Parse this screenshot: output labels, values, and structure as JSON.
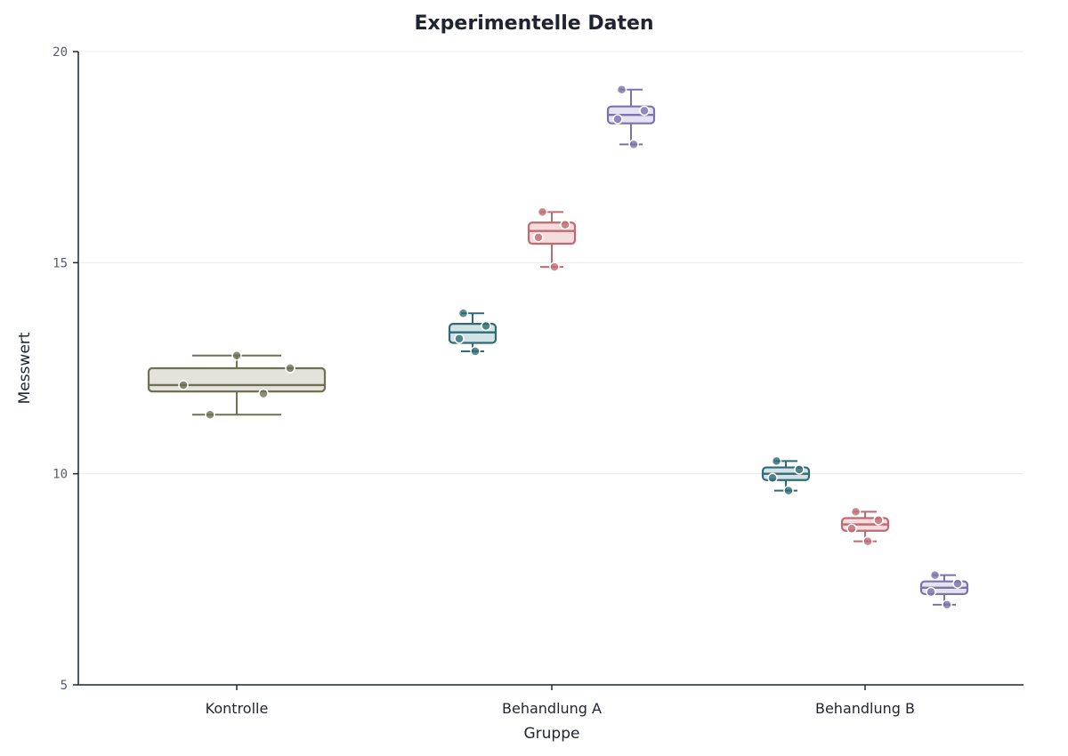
{
  "chart_data": {
    "type": "box",
    "title": "Experimentelle Daten",
    "xlabel": "Gruppe",
    "ylabel": "Messwert",
    "ylim": [
      5,
      20
    ],
    "yticks": [
      "5",
      "10",
      "15",
      "20"
    ],
    "ytick_values": [
      5,
      10,
      15,
      20
    ],
    "categories": [
      "Kontrolle",
      "Behandlung A",
      "Behandlung B"
    ],
    "grid": true,
    "boxes": [
      {
        "category": "Kontrolle",
        "offset": 0,
        "wide": true,
        "color": "#6e7152",
        "fill": "#e3e3dc",
        "min": 11.4,
        "q1": 11.95,
        "median": 12.1,
        "q3": 12.5,
        "max": 12.8,
        "points": [
          12.8,
          12.1,
          12.5,
          11.9,
          11.4
        ]
      },
      {
        "category": "Behandlung A",
        "offset": -1,
        "wide": false,
        "color": "#2e6b74",
        "fill": "#d3e3e5",
        "min": 12.9,
        "q1": 13.1,
        "median": 13.35,
        "q3": 13.55,
        "max": 13.8,
        "points": [
          13.8,
          13.5,
          13.2,
          12.9
        ]
      },
      {
        "category": "Behandlung A",
        "offset": 0,
        "wide": false,
        "color": "#c06a70",
        "fill": "#f3dddf",
        "min": 14.9,
        "q1": 15.45,
        "median": 15.75,
        "q3": 15.95,
        "max": 16.2,
        "points": [
          16.2,
          15.9,
          15.6,
          14.9
        ]
      },
      {
        "category": "Behandlung A",
        "offset": 1,
        "wide": false,
        "color": "#7d72aa",
        "fill": "#e5e2f1",
        "min": 17.8,
        "q1": 18.3,
        "median": 18.5,
        "q3": 18.7,
        "max": 19.1,
        "points": [
          19.1,
          18.6,
          18.4,
          17.8
        ]
      },
      {
        "category": "Behandlung B",
        "offset": -1,
        "wide": false,
        "color": "#2e6b74",
        "fill": "#d3e3e5",
        "min": 9.6,
        "q1": 9.85,
        "median": 10.0,
        "q3": 10.15,
        "max": 10.3,
        "points": [
          10.3,
          10.1,
          9.9,
          9.6
        ]
      },
      {
        "category": "Behandlung B",
        "offset": 0,
        "wide": false,
        "color": "#c06a70",
        "fill": "#f3dddf",
        "min": 8.4,
        "q1": 8.65,
        "median": 8.8,
        "q3": 8.95,
        "max": 9.1,
        "points": [
          9.1,
          8.9,
          8.7,
          8.4
        ]
      },
      {
        "category": "Behandlung B",
        "offset": 1,
        "wide": false,
        "color": "#7d72aa",
        "fill": "#e5e2f1",
        "min": 6.9,
        "q1": 7.15,
        "median": 7.3,
        "q3": 7.45,
        "max": 7.6,
        "points": [
          7.6,
          7.4,
          7.2,
          6.9
        ]
      }
    ]
  }
}
